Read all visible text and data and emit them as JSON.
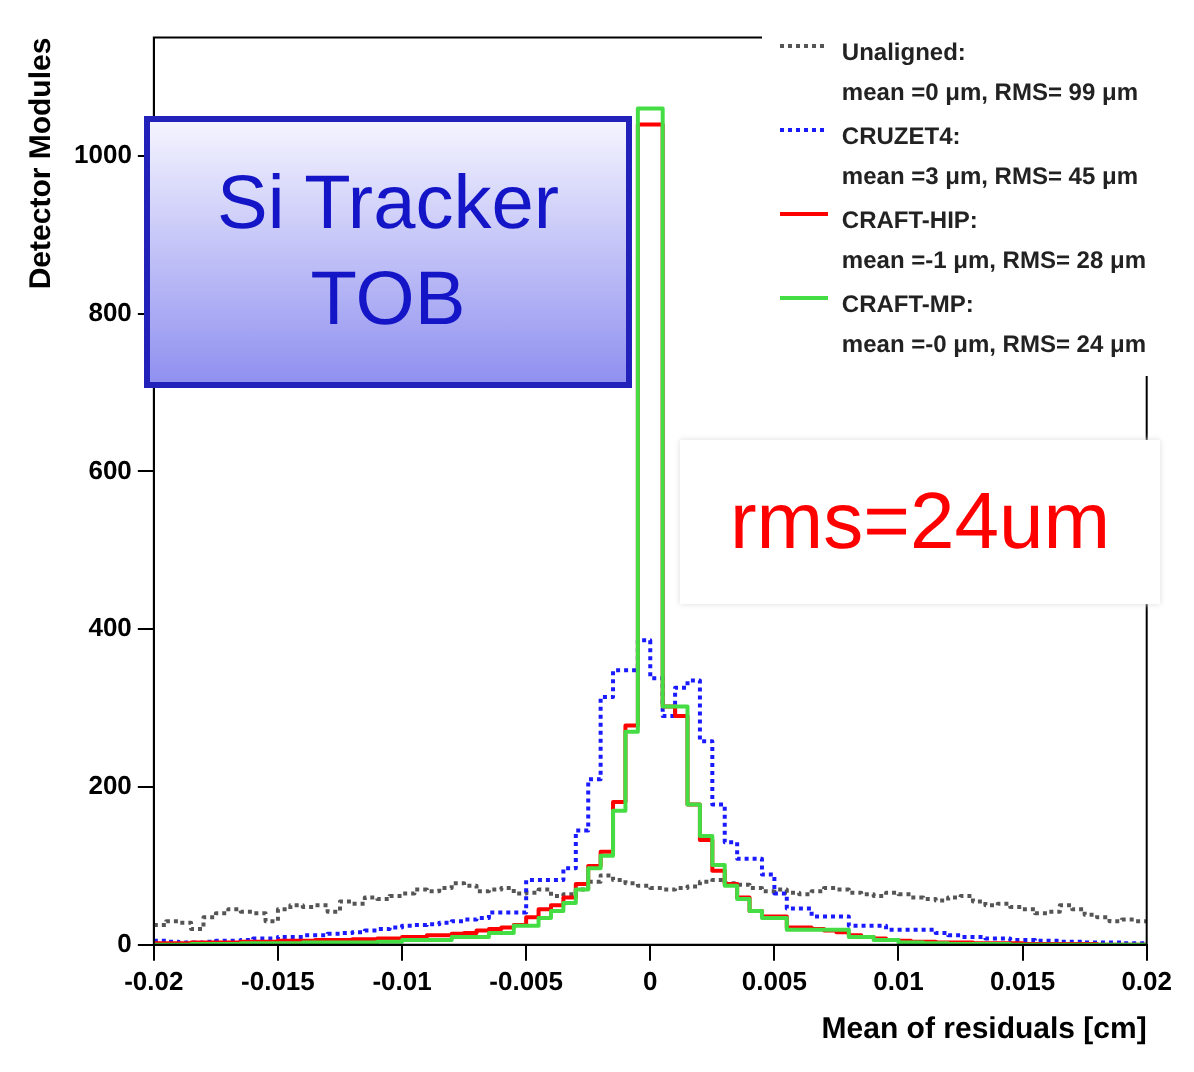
{
  "chart_data": {
    "type": "histogram",
    "xlabel": "Mean of residuals [cm]",
    "ylabel": "Detector Modules",
    "annotations": [
      "Si Tracker TOB",
      "rms=24um"
    ],
    "bins": [
      -0.02,
      -0.0195,
      -0.019,
      -0.0185,
      -0.018,
      -0.0175,
      -0.017,
      -0.0165,
      -0.016,
      -0.0155,
      -0.015,
      -0.0145,
      -0.014,
      -0.0135,
      -0.013,
      -0.0125,
      -0.012,
      -0.0115,
      -0.011,
      -0.0105,
      -0.01,
      -0.0095,
      -0.009,
      -0.0085,
      -0.008,
      -0.0075,
      -0.007,
      -0.0065,
      -0.006,
      -0.0055,
      -0.005,
      -0.0045,
      -0.004,
      -0.0035,
      -0.003,
      -0.0025,
      -0.002,
      -0.0015,
      -0.001,
      -0.0005,
      0,
      0.0005,
      0.001,
      0.0015,
      0.002,
      0.0025,
      0.003,
      0.0035,
      0.004,
      0.0045,
      0.005,
      0.0055,
      0.006,
      0.0065,
      0.007,
      0.0075,
      0.008,
      0.0085,
      0.009,
      0.0095,
      0.01,
      0.0105,
      0.011,
      0.0115,
      0.012,
      0.0125,
      0.013,
      0.0135,
      0.014,
      0.0145,
      0.015,
      0.0155,
      0.016,
      0.0165,
      0.017,
      0.0175,
      0.018,
      0.0185,
      0.019,
      0.0195,
      0.02
    ],
    "series": [
      {
        "name": "Unaligned:\nmean =0 μm, RMS= 99 μm",
        "color": "#555555",
        "line_style": "dotted",
        "values": [
          25,
          30,
          28,
          20,
          35,
          40,
          45,
          42,
          40,
          30,
          45,
          50,
          48,
          50,
          42,
          55,
          52,
          60,
          58,
          62,
          65,
          70,
          68,
          72,
          78,
          75,
          68,
          70,
          72,
          65,
          66,
          70,
          62,
          64,
          70,
          80,
          88,
          82,
          78,
          75,
          72,
          70,
          72,
          74,
          80,
          82,
          78,
          76,
          72,
          68,
          70,
          66,
          64,
          68,
          72,
          70,
          66,
          64,
          62,
          66,
          64,
          60,
          58,
          56,
          60,
          62,
          55,
          50,
          52,
          48,
          45,
          40,
          42,
          50,
          45,
          38,
          35,
          30,
          32,
          30
        ]
      },
      {
        "name": "CRUZET4:\nmean =3 μm, RMS= 45 μm",
        "color": "#1a1aff",
        "line_style": "dotted",
        "values": [
          5,
          4,
          3,
          3,
          4,
          5,
          5,
          6,
          8,
          8,
          10,
          10,
          12,
          12,
          14,
          15,
          16,
          18,
          20,
          22,
          24,
          25,
          26,
          28,
          30,
          32,
          34,
          41,
          41,
          41,
          82,
          82,
          82,
          97,
          145,
          210,
          314,
          348,
          348,
          386,
          338,
          290,
          326,
          335,
          258,
          178,
          130,
          109,
          109,
          89,
          65,
          46,
          46,
          36,
          36,
          36,
          24,
          24,
          24,
          19,
          19,
          19,
          19,
          15,
          12,
          10,
          10,
          8,
          8,
          6,
          6,
          5,
          5,
          4,
          4,
          3,
          3,
          3,
          2,
          2
        ]
      },
      {
        "name": "CRAFT-HIP:\nmean =-1 μm, RMS= 28 μm",
        "color": "#ff0000",
        "line_style": "solid",
        "values": [
          2,
          2,
          2,
          3,
          3,
          3,
          3,
          4,
          4,
          4,
          5,
          5,
          5,
          6,
          6,
          6,
          7,
          7,
          8,
          8,
          10,
          10,
          12,
          12,
          14,
          15,
          18,
          20,
          22,
          25,
          35,
          45,
          50,
          60,
          77,
          100,
          118,
          181,
          278,
          1040,
          1040,
          302,
          290,
          178,
          133,
          94,
          77,
          60,
          43,
          36,
          36,
          22,
          22,
          20,
          18,
          16,
          12,
          10,
          8,
          6,
          5,
          4,
          4,
          3,
          3,
          3,
          2,
          2,
          2,
          2,
          1,
          1,
          1,
          1,
          1,
          1,
          0,
          0,
          0,
          0
        ]
      },
      {
        "name": "CRAFT-MP:\nmean =-0 μm, RMS= 24 μm",
        "color": "#44dd44",
        "line_style": "solid",
        "values": [
          0,
          0,
          0,
          1,
          1,
          1,
          1,
          2,
          2,
          2,
          2,
          2,
          3,
          3,
          3,
          3,
          3,
          3,
          4,
          4,
          6,
          6,
          6,
          6,
          10,
          10,
          10,
          15,
          15,
          24,
          24,
          34,
          43,
          53,
          70,
          97,
          113,
          170,
          270,
          1060,
          1060,
          302,
          302,
          178,
          138,
          101,
          75,
          58,
          43,
          34,
          34,
          19,
          19,
          19,
          19,
          19,
          10,
          10,
          6,
          6,
          3,
          3,
          2,
          2,
          1,
          1,
          1,
          1,
          1,
          0,
          0,
          0,
          0,
          0,
          0,
          0,
          0,
          0,
          0,
          0
        ]
      }
    ],
    "xlim": [
      -0.02,
      0.02
    ],
    "xticks": [
      -0.02,
      -0.015,
      -0.01,
      -0.005,
      0,
      0.005,
      0.01,
      0.015,
      0.02
    ],
    "ylim": [
      0,
      1150
    ],
    "yticks": [
      0,
      200,
      400,
      600,
      800,
      1000
    ],
    "grid": false,
    "legend": "top right"
  }
}
